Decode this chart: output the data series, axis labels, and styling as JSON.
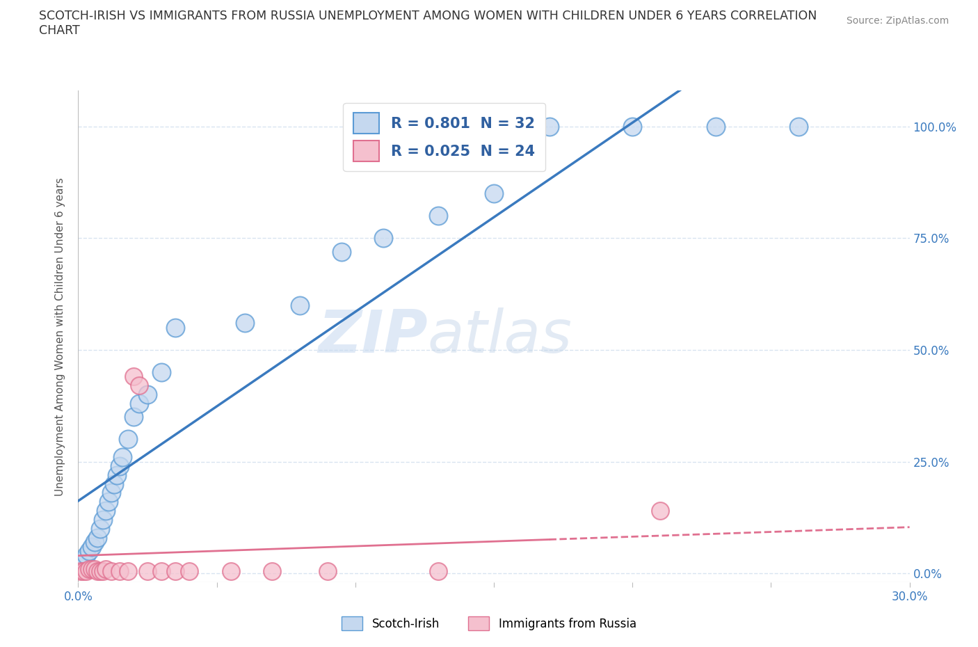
{
  "title_line1": "SCOTCH-IRISH VS IMMIGRANTS FROM RUSSIA UNEMPLOYMENT AMONG WOMEN WITH CHILDREN UNDER 6 YEARS CORRELATION",
  "title_line2": "CHART",
  "source": "Source: ZipAtlas.com",
  "ylabel": "Unemployment Among Women with Children Under 6 years",
  "xlim": [
    0.0,
    0.3
  ],
  "ylim": [
    -0.02,
    1.08
  ],
  "x_ticks": [
    0.0,
    0.05,
    0.1,
    0.15,
    0.2,
    0.25,
    0.3
  ],
  "x_tick_labels": [
    "0.0%",
    "",
    "",
    "",
    "",
    "",
    "30.0%"
  ],
  "y_ticks": [
    0.0,
    0.25,
    0.5,
    0.75,
    1.0
  ],
  "y_tick_labels": [
    "0.0%",
    "25.0%",
    "50.0%",
    "75.0%",
    "100.0%"
  ],
  "scotch_irish_R": 0.801,
  "scotch_irish_N": 32,
  "russia_R": 0.025,
  "russia_N": 24,
  "scotch_irish_color": "#c5d8ef",
  "scotch_irish_edge_color": "#5b9bd5",
  "russia_color": "#f5c0ce",
  "russia_edge_color": "#e07090",
  "russia_line_color": "#e07090",
  "scotch_irish_line_color": "#3a7abf",
  "right_axis_color": "#3a7abf",
  "legend_text_color": "#3060a0",
  "scotch_irish_x": [
    0.001,
    0.002,
    0.003,
    0.004,
    0.005,
    0.006,
    0.007,
    0.008,
    0.009,
    0.01,
    0.011,
    0.012,
    0.013,
    0.014,
    0.015,
    0.016,
    0.018,
    0.02,
    0.022,
    0.025,
    0.03,
    0.035,
    0.06,
    0.08,
    0.095,
    0.11,
    0.13,
    0.15,
    0.17,
    0.2,
    0.23,
    0.26
  ],
  "scotch_irish_y": [
    0.02,
    0.03,
    0.04,
    0.05,
    0.06,
    0.07,
    0.08,
    0.1,
    0.12,
    0.14,
    0.16,
    0.18,
    0.2,
    0.22,
    0.24,
    0.26,
    0.3,
    0.35,
    0.38,
    0.4,
    0.45,
    0.55,
    0.56,
    0.6,
    0.72,
    0.75,
    0.8,
    0.85,
    1.0,
    1.0,
    1.0,
    1.0
  ],
  "russia_x": [
    0.001,
    0.002,
    0.003,
    0.004,
    0.005,
    0.006,
    0.007,
    0.008,
    0.009,
    0.01,
    0.012,
    0.015,
    0.018,
    0.02,
    0.022,
    0.025,
    0.03,
    0.035,
    0.04,
    0.055,
    0.07,
    0.09,
    0.13,
    0.21
  ],
  "russia_y": [
    0.005,
    0.005,
    0.005,
    0.01,
    0.01,
    0.01,
    0.005,
    0.005,
    0.005,
    0.01,
    0.005,
    0.005,
    0.005,
    0.44,
    0.42,
    0.005,
    0.005,
    0.005,
    0.005,
    0.005,
    0.005,
    0.005,
    0.005,
    0.14
  ],
  "watermark_zip": "ZIP",
  "watermark_atlas": "atlas",
  "grid_color": "#d8e4f0",
  "background_color": "#ffffff"
}
